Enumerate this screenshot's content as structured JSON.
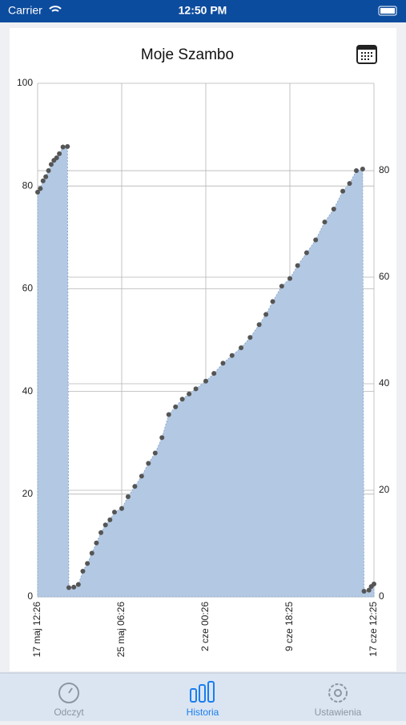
{
  "status_bar": {
    "carrier": "Carrier",
    "time": "12:50 PM"
  },
  "chart_data": {
    "type": "area",
    "title": "Moje Szambo",
    "x": [
      0,
      6,
      12,
      18,
      24,
      30,
      36,
      42,
      48,
      56,
      66,
      69,
      80,
      90,
      100,
      110,
      120,
      130,
      140,
      150,
      160,
      170,
      186,
      200,
      215,
      230,
      245,
      260,
      275,
      290,
      305,
      320,
      335,
      350,
      372,
      390,
      410,
      430,
      450,
      470,
      490,
      505,
      520,
      540,
      558,
      575,
      595,
      615,
      635,
      655,
      675,
      690,
      705,
      719,
      722,
      733,
      738,
      744
    ],
    "values": [
      78.8,
      79.5,
      81,
      81.8,
      83,
      84.2,
      85,
      85.5,
      86.3,
      87.6,
      87.7,
      1.8,
      1.9,
      2.4,
      5,
      6.5,
      8.5,
      10.5,
      12.5,
      14,
      15,
      16.5,
      17.2,
      19.5,
      21.5,
      23.5,
      26,
      28,
      31,
      35.5,
      37,
      38.5,
      39.5,
      40.5,
      42,
      43.5,
      45.5,
      47,
      48.5,
      50.5,
      53,
      55,
      57.5,
      60.5,
      62,
      64.5,
      67,
      69.5,
      73,
      75.5,
      79,
      80.5,
      83,
      83.3,
      1.1,
      1.3,
      2,
      2.5
    ],
    "xlim": [
      0,
      744
    ],
    "xticks": [
      {
        "value": 0,
        "label": "17 maj 12:26"
      },
      {
        "value": 186,
        "label": "25 maj 06:26"
      },
      {
        "value": 372,
        "label": "2 cze 00:26"
      },
      {
        "value": 558,
        "label": "9 cze 18:25"
      },
      {
        "value": 744,
        "label": "17 cze 12:25"
      }
    ],
    "ylim": [
      0,
      100
    ],
    "yticks": [
      0,
      20,
      40,
      60,
      80,
      100
    ],
    "y2lim": [
      0,
      96.4
    ],
    "y2ticks": [
      0,
      20,
      40,
      60,
      80
    ],
    "color": "#b3c8e2",
    "marker_color": "#555555",
    "grid": true
  },
  "tab_bar": {
    "tabs": [
      "Odczyt",
      "Historia",
      "Ustawienia"
    ],
    "active": 1
  }
}
